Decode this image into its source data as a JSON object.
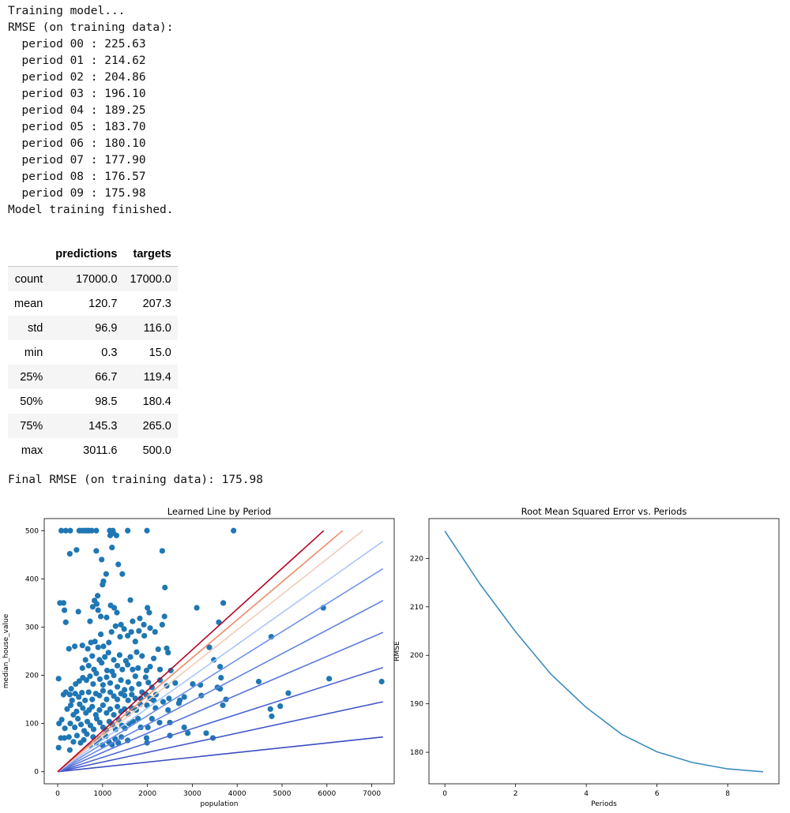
{
  "log": {
    "training_start": "Training model...",
    "rmse_header": "RMSE (on training data):",
    "periods": [
      {
        "label": "period 00",
        "rmse": "225.63"
      },
      {
        "label": "period 01",
        "rmse": "214.62"
      },
      {
        "label": "period 02",
        "rmse": "204.86"
      },
      {
        "label": "period 03",
        "rmse": "196.10"
      },
      {
        "label": "period 04",
        "rmse": "189.25"
      },
      {
        "label": "period 05",
        "rmse": "183.70"
      },
      {
        "label": "period 06",
        "rmse": "180.10"
      },
      {
        "label": "period 07",
        "rmse": "177.90"
      },
      {
        "label": "period 08",
        "rmse": "176.57"
      },
      {
        "label": "period 09",
        "rmse": "175.98"
      }
    ],
    "training_end": "Model training finished."
  },
  "stats_table": {
    "columns": [
      "predictions",
      "targets"
    ],
    "rows": [
      {
        "index": "count",
        "predictions": "17000.0",
        "targets": "17000.0"
      },
      {
        "index": "mean",
        "predictions": "120.7",
        "targets": "207.3"
      },
      {
        "index": "std",
        "predictions": "96.9",
        "targets": "116.0"
      },
      {
        "index": "min",
        "predictions": "0.3",
        "targets": "15.0"
      },
      {
        "index": "25%",
        "predictions": "66.7",
        "targets": "119.4"
      },
      {
        "index": "50%",
        "predictions": "98.5",
        "targets": "180.4"
      },
      {
        "index": "75%",
        "predictions": "145.3",
        "targets": "265.0"
      },
      {
        "index": "max",
        "predictions": "3011.6",
        "targets": "500.0"
      }
    ]
  },
  "final_rmse": "Final RMSE (on training data): 175.98",
  "chart_data": [
    {
      "type": "scatter",
      "title": "Learned Line by Period",
      "xlabel": "population",
      "ylabel": "median_house_value",
      "xlim": [
        -300,
        7500
      ],
      "ylim": [
        -25,
        525
      ],
      "xticks": [
        0,
        1000,
        2000,
        3000,
        4000,
        5000,
        6000,
        7000
      ],
      "yticks": [
        0,
        100,
        200,
        300,
        400,
        500
      ],
      "point_color": "#1f77b4",
      "points": [
        [
          80,
          500
        ],
        [
          180,
          500
        ],
        [
          280,
          500
        ],
        [
          480,
          500
        ],
        [
          530,
          500
        ],
        [
          580,
          500
        ],
        [
          620,
          500
        ],
        [
          660,
          500
        ],
        [
          700,
          500
        ],
        [
          760,
          500
        ],
        [
          860,
          500
        ],
        [
          1160,
          500
        ],
        [
          1230,
          500
        ],
        [
          1560,
          500
        ],
        [
          1990,
          500
        ],
        [
          3920,
          500
        ],
        [
          1170,
          490
        ],
        [
          1240,
          495
        ],
        [
          1310,
          490
        ],
        [
          270,
          452
        ],
        [
          420,
          460
        ],
        [
          860,
          458
        ],
        [
          1210,
          465
        ],
        [
          2330,
          458
        ],
        [
          1350,
          430
        ],
        [
          980,
          440
        ],
        [
          1080,
          410
        ],
        [
          1020,
          395
        ],
        [
          1440,
          410
        ],
        [
          1000,
          388
        ],
        [
          2390,
          382
        ],
        [
          50,
          350
        ],
        [
          130,
          350
        ],
        [
          890,
          365
        ],
        [
          820,
          355
        ],
        [
          870,
          348
        ],
        [
          1180,
          345
        ],
        [
          1620,
          356
        ],
        [
          2000,
          340
        ],
        [
          3100,
          340
        ],
        [
          3690,
          350
        ],
        [
          5920,
          340
        ],
        [
          150,
          335
        ],
        [
          460,
          332
        ],
        [
          780,
          342
        ],
        [
          900,
          335
        ],
        [
          1260,
          340
        ],
        [
          1320,
          330
        ],
        [
          1090,
          320
        ],
        [
          2040,
          330
        ],
        [
          2380,
          322
        ],
        [
          180,
          310
        ],
        [
          720,
          312
        ],
        [
          960,
          322
        ],
        [
          1410,
          305
        ],
        [
          1670,
          312
        ],
        [
          1830,
          318
        ],
        [
          1920,
          305
        ],
        [
          3590,
          310
        ],
        [
          250,
          255
        ],
        [
          380,
          260
        ],
        [
          550,
          262
        ],
        [
          670,
          255
        ],
        [
          740,
          268
        ],
        [
          830,
          270
        ],
        [
          900,
          258
        ],
        [
          960,
          285
        ],
        [
          1020,
          260
        ],
        [
          1140,
          268
        ],
        [
          1200,
          290
        ],
        [
          1290,
          302
        ],
        [
          1390,
          280
        ],
        [
          1480,
          296
        ],
        [
          1560,
          282
        ],
        [
          1640,
          290
        ],
        [
          1730,
          270
        ],
        [
          1810,
          292
        ],
        [
          1930,
          282
        ],
        [
          2060,
          298
        ],
        [
          2170,
          290
        ],
        [
          2330,
          305
        ],
        [
          2430,
          256
        ],
        [
          2240,
          254
        ],
        [
          4760,
          280
        ],
        [
          3380,
          258
        ],
        [
          620,
          232
        ],
        [
          770,
          240
        ],
        [
          930,
          232
        ],
        [
          1050,
          238
        ],
        [
          1130,
          247
        ],
        [
          1250,
          232
        ],
        [
          1380,
          242
        ],
        [
          1520,
          230
        ],
        [
          1620,
          238
        ],
        [
          1760,
          248
        ],
        [
          1880,
          240
        ],
        [
          2140,
          235
        ],
        [
          2460,
          247
        ],
        [
          3480,
          232
        ],
        [
          550,
          215
        ],
        [
          690,
          220
        ],
        [
          810,
          212
        ],
        [
          980,
          226
        ],
        [
          1100,
          210
        ],
        [
          1210,
          208
        ],
        [
          1330,
          220
        ],
        [
          1440,
          212
        ],
        [
          1560,
          222
        ],
        [
          1670,
          212
        ],
        [
          1790,
          215
        ],
        [
          1980,
          210
        ],
        [
          2060,
          218
        ],
        [
          2280,
          212
        ],
        [
          2520,
          210
        ],
        [
          3620,
          218
        ],
        [
          20,
          193
        ],
        [
          180,
          165
        ],
        [
          300,
          172
        ],
        [
          400,
          182
        ],
        [
          480,
          188
        ],
        [
          560,
          195
        ],
        [
          640,
          190
        ],
        [
          720,
          198
        ],
        [
          790,
          182
        ],
        [
          860,
          204
        ],
        [
          940,
          192
        ],
        [
          1010,
          180
        ],
        [
          1090,
          196
        ],
        [
          1170,
          184
        ],
        [
          1250,
          200
        ],
        [
          1330,
          176
        ],
        [
          1410,
          190
        ],
        [
          1490,
          170
        ],
        [
          1570,
          186
        ],
        [
          1650,
          172
        ],
        [
          1730,
          198
        ],
        [
          1810,
          182
        ],
        [
          1880,
          165
        ],
        [
          1960,
          196
        ],
        [
          2020,
          185
        ],
        [
          2100,
          175
        ],
        [
          2190,
          160
        ],
        [
          2280,
          190
        ],
        [
          2430,
          178
        ],
        [
          2620,
          184
        ],
        [
          3010,
          182
        ],
        [
          3180,
          180
        ],
        [
          3560,
          175
        ],
        [
          3640,
          195
        ],
        [
          4480,
          187
        ],
        [
          6050,
          193
        ],
        [
          7220,
          187
        ],
        [
          130,
          160
        ],
        [
          270,
          160
        ],
        [
          320,
          148
        ],
        [
          390,
          162
        ],
        [
          470,
          155
        ],
        [
          540,
          164
        ],
        [
          610,
          148
        ],
        [
          690,
          165
        ],
        [
          770,
          150
        ],
        [
          850,
          162
        ],
        [
          930,
          158
        ],
        [
          1010,
          168
        ],
        [
          1090,
          150
        ],
        [
          1170,
          165
        ],
        [
          1250,
          157
        ],
        [
          1330,
          150
        ],
        [
          1410,
          162
        ],
        [
          1490,
          158
        ],
        [
          1570,
          148
        ],
        [
          1650,
          160
        ],
        [
          1730,
          152
        ],
        [
          1850,
          152
        ],
        [
          1970,
          160
        ],
        [
          2060,
          152
        ],
        [
          2140,
          148
        ],
        [
          2350,
          145
        ],
        [
          2480,
          152
        ],
        [
          2700,
          142
        ],
        [
          2820,
          155
        ],
        [
          3200,
          158
        ],
        [
          3620,
          172
        ],
        [
          3750,
          150
        ],
        [
          5140,
          163
        ],
        [
          210,
          130
        ],
        [
          290,
          138
        ],
        [
          350,
          118
        ],
        [
          420,
          125
        ],
        [
          490,
          140
        ],
        [
          560,
          132
        ],
        [
          630,
          122
        ],
        [
          700,
          128
        ],
        [
          770,
          135
        ],
        [
          850,
          118
        ],
        [
          930,
          128
        ],
        [
          1010,
          138
        ],
        [
          1090,
          122
        ],
        [
          1170,
          130
        ],
        [
          1250,
          118
        ],
        [
          1330,
          135
        ],
        [
          1410,
          125
        ],
        [
          1490,
          130
        ],
        [
          1570,
          120
        ],
        [
          1650,
          132
        ],
        [
          1750,
          128
        ],
        [
          1840,
          140
        ],
        [
          1990,
          138
        ],
        [
          2180,
          132
        ],
        [
          2460,
          128
        ],
        [
          2720,
          148
        ],
        [
          3680,
          138
        ],
        [
          4960,
          136
        ],
        [
          4740,
          130
        ],
        [
          4770,
          115
        ],
        [
          30,
          100
        ],
        [
          90,
          108
        ],
        [
          160,
          90
        ],
        [
          280,
          100
        ],
        [
          380,
          92
        ],
        [
          450,
          110
        ],
        [
          520,
          98
        ],
        [
          590,
          85
        ],
        [
          660,
          104
        ],
        [
          730,
          96
        ],
        [
          800,
          88
        ],
        [
          870,
          110
        ],
        [
          940,
          102
        ],
        [
          1010,
          92
        ],
        [
          1080,
          86
        ],
        [
          1150,
          104
        ],
        [
          1220,
          98
        ],
        [
          1290,
          88
        ],
        [
          1360,
          108
        ],
        [
          1430,
          96
        ],
        [
          1500,
          90
        ],
        [
          1590,
          100
        ],
        [
          1680,
          104
        ],
        [
          1790,
          110
        ],
        [
          1850,
          92
        ],
        [
          2010,
          92
        ],
        [
          2100,
          110
        ],
        [
          2270,
          102
        ],
        [
          2500,
          102
        ],
        [
          2820,
          92
        ],
        [
          3460,
          70
        ],
        [
          2500,
          75
        ],
        [
          2900,
          80
        ],
        [
          3310,
          80
        ],
        [
          20,
          50
        ],
        [
          70,
          70
        ],
        [
          150,
          70
        ],
        [
          250,
          72
        ],
        [
          350,
          62
        ],
        [
          430,
          75
        ],
        [
          510,
          60
        ],
        [
          580,
          66
        ],
        [
          650,
          78
        ],
        [
          720,
          55
        ],
        [
          790,
          72
        ],
        [
          860,
          60
        ],
        [
          930,
          68
        ],
        [
          1000,
          55
        ],
        [
          1070,
          74
        ],
        [
          1140,
          62
        ],
        [
          1210,
          56
        ],
        [
          1280,
          68
        ],
        [
          1350,
          60
        ],
        [
          1420,
          72
        ],
        [
          1560,
          65
        ],
        [
          1990,
          60
        ],
        [
          1980,
          70
        ],
        [
          270,
          45
        ]
      ],
      "series": [
        {
          "name": "period 00",
          "color": "#3b4cc0",
          "x": [
            0,
            7250
          ],
          "y": [
            0,
            72
          ]
        },
        {
          "name": "period 01",
          "color": "#4257c9",
          "x": [
            0,
            7250
          ],
          "y": [
            0,
            145
          ]
        },
        {
          "name": "period 02",
          "color": "#4a64d2",
          "x": [
            0,
            7250
          ],
          "y": [
            0,
            216
          ]
        },
        {
          "name": "period 03",
          "color": "#5572da",
          "x": [
            0,
            7250
          ],
          "y": [
            0,
            289
          ]
        },
        {
          "name": "period 04",
          "color": "#6283e2",
          "x": [
            0,
            7250
          ],
          "y": [
            0,
            355
          ]
        },
        {
          "name": "period 05",
          "color": "#6f92e8",
          "x": [
            0,
            7250
          ],
          "y": [
            0,
            421
          ]
        },
        {
          "name": "period 06",
          "color": "#aac7fb",
          "x": [
            0,
            7250
          ],
          "y": [
            0,
            478
          ]
        },
        {
          "name": "period 07",
          "color": "#f2cbb7",
          "x": [
            0,
            6800
          ],
          "y": [
            0,
            500
          ]
        },
        {
          "name": "period 08",
          "color": "#ef8a68",
          "x": [
            0,
            6350
          ],
          "y": [
            0,
            500
          ]
        },
        {
          "name": "period 09",
          "color": "#b40426",
          "x": [
            0,
            5930
          ],
          "y": [
            0,
            500
          ]
        }
      ]
    },
    {
      "type": "line",
      "title": "Root Mean Squared Error vs. Periods",
      "xlabel": "Periods",
      "ylabel": "RMSE",
      "xlim": [
        -0.45,
        9.45
      ],
      "ylim": [
        173.5,
        228.2
      ],
      "xticks": [
        0,
        2,
        4,
        6,
        8
      ],
      "yticks": [
        180,
        190,
        200,
        210,
        220
      ],
      "line_color": "#3c8dbc",
      "x": [
        0,
        1,
        2,
        3,
        4,
        5,
        6,
        7,
        8,
        9
      ],
      "y": [
        225.63,
        214.62,
        204.86,
        196.1,
        189.25,
        183.7,
        180.1,
        177.9,
        176.57,
        175.98
      ]
    }
  ]
}
